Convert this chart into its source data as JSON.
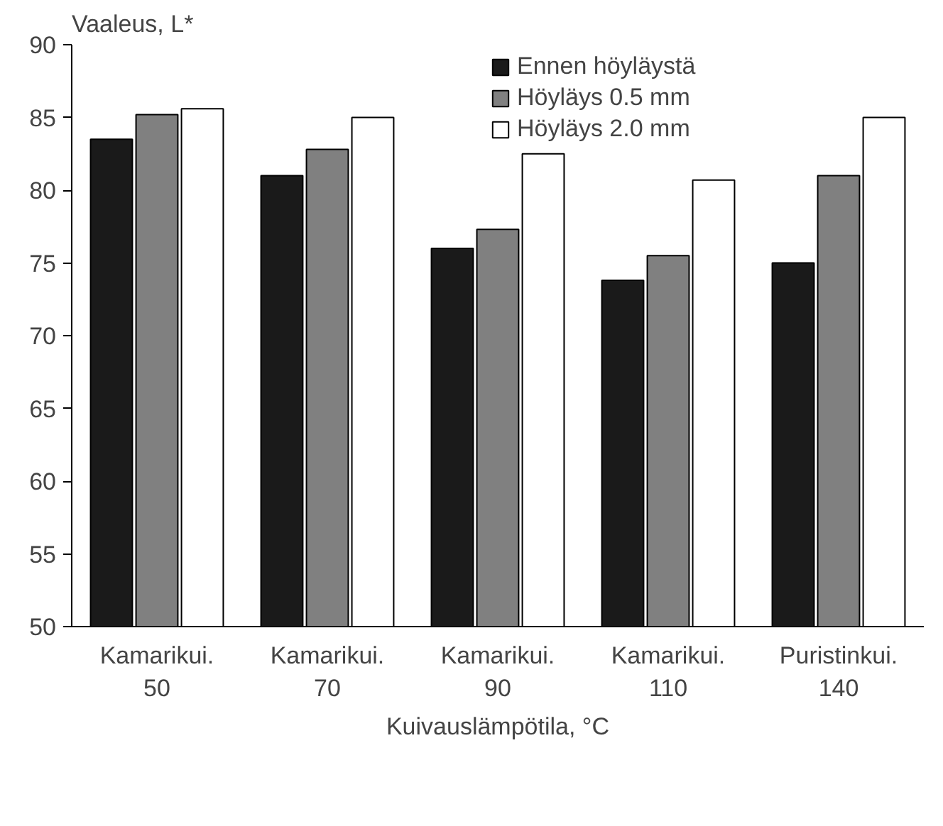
{
  "chart_data": {
    "type": "bar",
    "ylabel": "Vaaleus, L*",
    "xlabel": "Kuivauslämpötila, °C",
    "categories": [
      "Kamarikui.\n50",
      "Kamarikui.\n70",
      "Kamarikui.\n90",
      "Kamarikui.\n110",
      "Puristinkui.\n140"
    ],
    "series": [
      {
        "name": "Ennen höyläystä",
        "color": "#1a1a1a",
        "values": [
          83.5,
          81.0,
          76.0,
          73.8,
          75.0
        ]
      },
      {
        "name": "Höyläys 0.5 mm",
        "color": "#808080",
        "values": [
          85.2,
          82.8,
          77.3,
          75.5,
          81.0
        ]
      },
      {
        "name": "Höyläys 2.0 mm",
        "color": "#ffffff",
        "values": [
          85.6,
          85.0,
          82.5,
          80.7,
          85.0
        ]
      }
    ],
    "ylim": [
      50,
      90
    ],
    "yticks": [
      50,
      55,
      60,
      65,
      70,
      75,
      80,
      85,
      90
    ],
    "legend": "top right"
  }
}
